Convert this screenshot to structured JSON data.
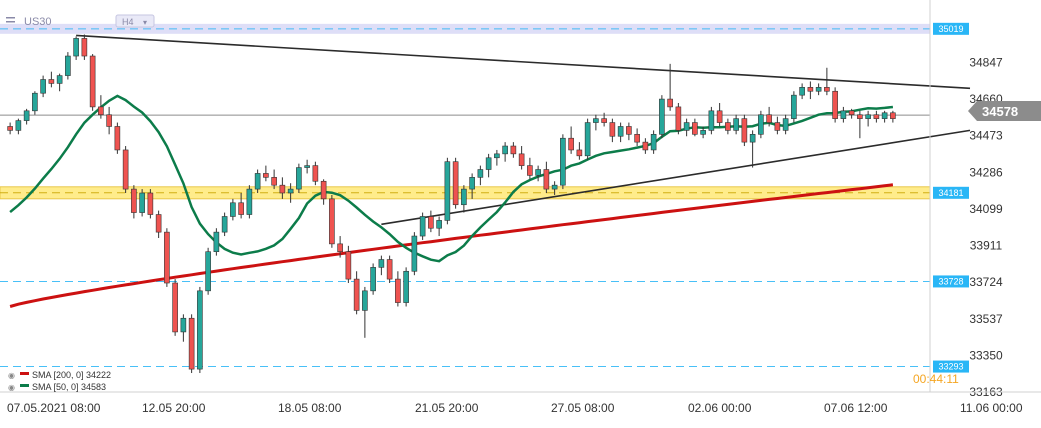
{
  "symbol": "US30",
  "timeframe": "H4",
  "price_tag": "34578",
  "countdown": "00:44:11",
  "legend": {
    "sma200": "SMA  [200,  0]  34222",
    "sma50": "SMA  [50,  0]  34583"
  },
  "colors": {
    "bull": "#26a69a",
    "bear": "#ef5350",
    "sma200": "#cc1111",
    "sma50": "#0c7c4a",
    "level_tag": "#29b6f6",
    "support_zone": "#ffec8b",
    "resistance_zone": "#d6d6f5",
    "trendline": "#2b2b2b"
  },
  "chart_data": {
    "type": "candlestick",
    "title": "",
    "ylim": [
      33163,
      35105
    ],
    "y_ticks": [
      "34847",
      "34660",
      "34473",
      "34286",
      "34099",
      "33911",
      "33724",
      "33537",
      "33350",
      "33163"
    ],
    "x_ticks": [
      "07.05.2021  08:00",
      "12.05  20:00",
      "18.05  08:00",
      "21.05  20:00",
      "27.05  08:00",
      "02.06  00:00",
      "07.06  12:00",
      "11.06  00:00"
    ],
    "levels": [
      {
        "label": "35019",
        "value": 35019,
        "style": "dashed-blue"
      },
      {
        "label": "34181",
        "value": 34181,
        "style": "zone-yellow"
      },
      {
        "label": "33728",
        "value": 33728,
        "style": "dashed-blue"
      },
      {
        "label": "33293",
        "value": 33293,
        "style": "dashed-blue"
      }
    ],
    "current_price": 34578,
    "indicators": [
      {
        "name": "SMA 200",
        "value": 34222
      },
      {
        "name": "SMA 50",
        "value": 34583
      }
    ],
    "candles": [
      [
        34520,
        34540,
        34480,
        34500
      ],
      [
        34500,
        34560,
        34480,
        34550
      ],
      [
        34550,
        34610,
        34530,
        34600
      ],
      [
        34600,
        34700,
        34580,
        34690
      ],
      [
        34690,
        34780,
        34670,
        34760
      ],
      [
        34760,
        34800,
        34720,
        34740
      ],
      [
        34740,
        34790,
        34700,
        34780
      ],
      [
        34780,
        34900,
        34760,
        34880
      ],
      [
        34880,
        34980,
        34860,
        34970
      ],
      [
        34970,
        34990,
        34860,
        34880
      ],
      [
        34880,
        34890,
        34600,
        34620
      ],
      [
        34620,
        34680,
        34560,
        34580
      ],
      [
        34580,
        34620,
        34480,
        34520
      ],
      [
        34520,
        34540,
        34380,
        34400
      ],
      [
        34400,
        34420,
        34180,
        34200
      ],
      [
        34200,
        34220,
        34050,
        34080
      ],
      [
        34080,
        34200,
        34060,
        34180
      ],
      [
        34180,
        34200,
        34050,
        34070
      ],
      [
        34070,
        34090,
        33950,
        33980
      ],
      [
        33980,
        34000,
        33700,
        33720
      ],
      [
        33720,
        33740,
        33450,
        33470
      ],
      [
        33470,
        33560,
        33420,
        33540
      ],
      [
        33540,
        33560,
        33260,
        33280
      ],
      [
        33280,
        33700,
        33260,
        33680
      ],
      [
        33680,
        33900,
        33660,
        33880
      ],
      [
        33880,
        34000,
        33860,
        33980
      ],
      [
        33980,
        34080,
        33960,
        34060
      ],
      [
        34060,
        34150,
        34040,
        34130
      ],
      [
        34130,
        34180,
        34050,
        34070
      ],
      [
        34070,
        34220,
        34050,
        34200
      ],
      [
        34200,
        34300,
        34180,
        34280
      ],
      [
        34280,
        34320,
        34240,
        34260
      ],
      [
        34260,
        34300,
        34200,
        34220
      ],
      [
        34220,
        34260,
        34150,
        34180
      ],
      [
        34180,
        34230,
        34130,
        34200
      ],
      [
        34200,
        34330,
        34180,
        34310
      ],
      [
        34310,
        34350,
        34280,
        34320
      ],
      [
        34320,
        34340,
        34220,
        34240
      ],
      [
        34240,
        34250,
        34120,
        34150
      ],
      [
        34150,
        34170,
        33900,
        33920
      ],
      [
        33920,
        33960,
        33850,
        33880
      ],
      [
        33880,
        33910,
        33720,
        33740
      ],
      [
        33740,
        33780,
        33560,
        33580
      ],
      [
        33580,
        33700,
        33440,
        33680
      ],
      [
        33680,
        33820,
        33660,
        33800
      ],
      [
        33800,
        33860,
        33760,
        33840
      ],
      [
        33840,
        33860,
        33720,
        33740
      ],
      [
        33740,
        33780,
        33600,
        33620
      ],
      [
        33620,
        33800,
        33600,
        33780
      ],
      [
        33780,
        33980,
        33760,
        33960
      ],
      [
        33960,
        34080,
        33940,
        34060
      ],
      [
        34060,
        34090,
        33980,
        34000
      ],
      [
        34000,
        34060,
        33960,
        34040
      ],
      [
        34040,
        34360,
        34020,
        34340
      ],
      [
        34340,
        34360,
        34100,
        34120
      ],
      [
        34120,
        34220,
        34080,
        34200
      ],
      [
        34200,
        34280,
        34150,
        34260
      ],
      [
        34260,
        34320,
        34220,
        34300
      ],
      [
        34300,
        34380,
        34260,
        34360
      ],
      [
        34360,
        34400,
        34320,
        34380
      ],
      [
        34380,
        34440,
        34340,
        34420
      ],
      [
        34420,
        34440,
        34360,
        34380
      ],
      [
        34380,
        34420,
        34300,
        34320
      ],
      [
        34320,
        34360,
        34250,
        34270
      ],
      [
        34270,
        34320,
        34240,
        34300
      ],
      [
        34300,
        34340,
        34180,
        34200
      ],
      [
        34200,
        34240,
        34170,
        34220
      ],
      [
        34220,
        34480,
        34200,
        34460
      ],
      [
        34460,
        34520,
        34380,
        34400
      ],
      [
        34400,
        34440,
        34350,
        34370
      ],
      [
        34370,
        34560,
        34350,
        34540
      ],
      [
        34540,
        34580,
        34500,
        34560
      ],
      [
        34560,
        34590,
        34520,
        34540
      ],
      [
        34540,
        34560,
        34440,
        34470
      ],
      [
        34470,
        34540,
        34440,
        34520
      ],
      [
        34520,
        34540,
        34450,
        34480
      ],
      [
        34480,
        34510,
        34420,
        34440
      ],
      [
        34440,
        34460,
        34380,
        34400
      ],
      [
        34400,
        34500,
        34380,
        34480
      ],
      [
        34480,
        34680,
        34460,
        34660
      ],
      [
        34660,
        34840,
        34600,
        34620
      ],
      [
        34620,
        34640,
        34480,
        34500
      ],
      [
        34500,
        34560,
        34470,
        34540
      ],
      [
        34540,
        34560,
        34470,
        34480
      ],
      [
        34480,
        34520,
        34460,
        34500
      ],
      [
        34500,
        34620,
        34480,
        34600
      ],
      [
        34600,
        34640,
        34520,
        34540
      ],
      [
        34540,
        34560,
        34480,
        34500
      ],
      [
        34500,
        34580,
        34480,
        34560
      ],
      [
        34560,
        34580,
        34420,
        34440
      ],
      [
        34440,
        34500,
        34310,
        34480
      ],
      [
        34480,
        34600,
        34460,
        34580
      ],
      [
        34580,
        34620,
        34520,
        34540
      ],
      [
        34540,
        34570,
        34480,
        34500
      ],
      [
        34500,
        34580,
        34480,
        34560
      ],
      [
        34560,
        34700,
        34540,
        34680
      ],
      [
        34680,
        34740,
        34660,
        34720
      ],
      [
        34720,
        34750,
        34660,
        34700
      ],
      [
        34700,
        34740,
        34680,
        34720
      ],
      [
        34720,
        34820,
        34680,
        34700
      ],
      [
        34700,
        34720,
        34540,
        34560
      ],
      [
        34560,
        34620,
        34540,
        34600
      ],
      [
        34600,
        34610,
        34560,
        34580
      ],
      [
        34580,
        34600,
        34460,
        34560
      ],
      [
        34560,
        34600,
        34520,
        34580
      ],
      [
        34580,
        34600,
        34540,
        34560
      ],
      [
        34560,
        34600,
        34540,
        34590
      ],
      [
        34590,
        34600,
        34540,
        34560
      ]
    ]
  }
}
